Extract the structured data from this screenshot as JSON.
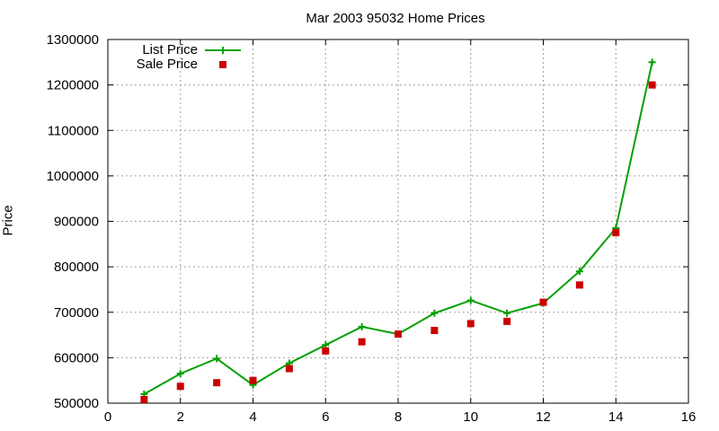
{
  "chart_data": {
    "type": "line",
    "title": "Mar 2003 95032 Home Prices",
    "xlabel": "",
    "ylabel": "Price",
    "xlim": [
      0,
      16
    ],
    "ylim": [
      500000,
      1300000
    ],
    "xticks": [
      0,
      2,
      4,
      6,
      8,
      10,
      12,
      14,
      16
    ],
    "yticks": [
      500000,
      600000,
      700000,
      800000,
      900000,
      1000000,
      1100000,
      1200000,
      1300000
    ],
    "grid": true,
    "legend_position": "top-left",
    "series": [
      {
        "name": "List Price",
        "style": "line-plus",
        "color": "#00a000",
        "x": [
          1,
          2,
          3,
          4,
          5,
          6,
          7,
          8,
          9,
          10,
          11,
          12,
          13,
          14,
          15
        ],
        "y": [
          520000,
          565000,
          598000,
          540000,
          588000,
          628000,
          668000,
          652000,
          698000,
          726000,
          698000,
          720000,
          790000,
          885000,
          1250000
        ]
      },
      {
        "name": "Sale Price",
        "style": "square-points",
        "color": "#cc0000",
        "x": [
          1,
          2,
          3,
          4,
          5,
          6,
          7,
          8,
          9,
          10,
          11,
          12,
          13,
          14,
          15
        ],
        "y": [
          508000,
          537000,
          545000,
          550000,
          576000,
          615000,
          635000,
          652000,
          660000,
          675000,
          680000,
          722000,
          760000,
          875000,
          1200000
        ]
      }
    ]
  }
}
